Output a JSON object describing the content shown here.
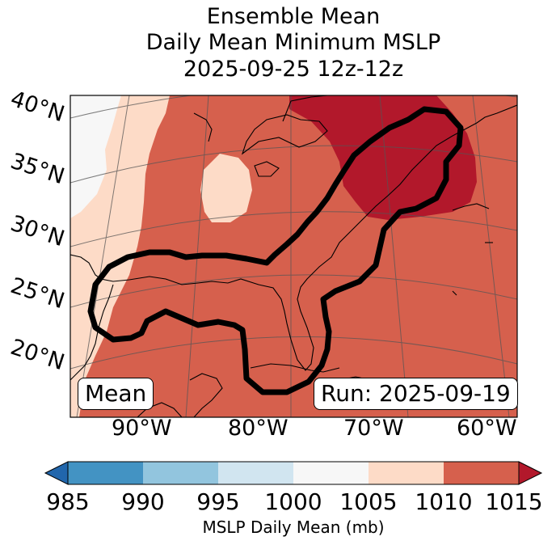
{
  "title": {
    "line1": "Ensemble Mean",
    "line2": "Daily Mean Minimum MSLP",
    "line3": "2025-09-25 12z-12z"
  },
  "labels": {
    "mean": "Mean",
    "run": "Run: 2025-09-19"
  },
  "map": {
    "lat_ticks": [
      "40°N",
      "35°N",
      "30°N",
      "25°N",
      "20°N"
    ],
    "lon_ticks": [
      "90°W",
      "80°W",
      "70°W",
      "60°W"
    ]
  },
  "colorbar": {
    "label": "MSLP Daily Mean (mb)",
    "ticks": [
      "985",
      "990",
      "995",
      "1000",
      "1005",
      "1010",
      "1015"
    ],
    "colors": {
      "under": "#2166ac",
      "b985_990": "#4393c3",
      "b990_995": "#92c5de",
      "b995_1000": "#d1e5f0",
      "b1000_1005": "#f7f7f7",
      "b1005_1010": "#fddbc7",
      "b1010_1015": "#d6604d",
      "over": "#b2182b"
    }
  }
}
